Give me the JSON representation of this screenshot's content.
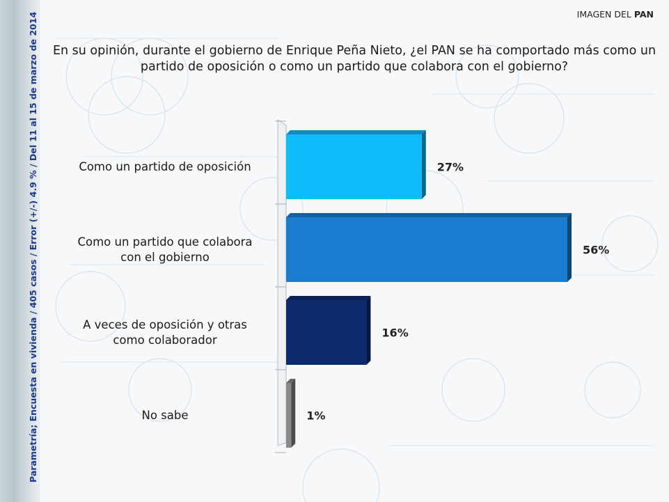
{
  "header": {
    "brand_prefix": "IMAGEN DEL ",
    "brand_bold": "PAN"
  },
  "question": "En su opinión, durante el gobierno de Enrique Peña Nieto, ¿el PAN  se ha comportado más como un partido de oposición o como un partido que colabora con el gobierno?",
  "side_note": "Parametría; Encuesta en vivienda / 405 casos / Error (+/-) 4.9 % / Del 11 al 15 de marzo de 2014",
  "chart_data": {
    "type": "bar",
    "orientation": "horizontal",
    "categories": [
      "Como un partido de oposición",
      "Como un partido que colabora con el gobierno",
      "A veces de oposición y otras como colaborador",
      "No sabe"
    ],
    "category_lines": [
      [
        "Como un partido de oposición"
      ],
      [
        "Como un partido que colabora",
        "con el gobierno"
      ],
      [
        "A veces de oposición y otras",
        "como colaborador"
      ],
      [
        "No sabe"
      ]
    ],
    "values": [
      27,
      56,
      16,
      1
    ],
    "value_labels": [
      "27%",
      "56%",
      "16%",
      "1%"
    ],
    "colors": [
      "#0fbcf9",
      "#1a7ed0",
      "#0e2a6e",
      "#8a8a8a"
    ],
    "xlim": [
      0,
      56
    ],
    "grid": false,
    "legend": "none"
  }
}
